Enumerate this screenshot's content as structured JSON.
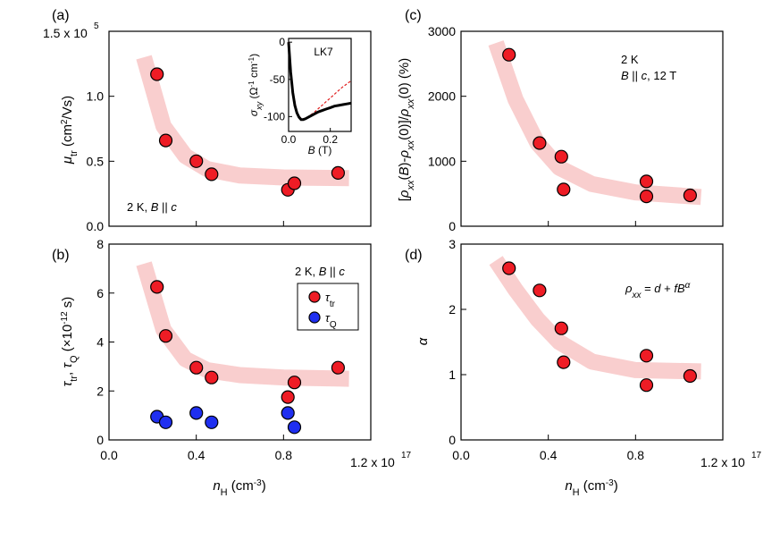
{
  "colors": {
    "tr": "#ee1c25",
    "q": "#1f2ff0",
    "band": "#f4a6a6",
    "inset_dashed": "#e02020"
  },
  "chart_data": [
    {
      "id": "a",
      "panel_label": "(a)",
      "type": "scatter",
      "ylabel": "μ_tr (cm²/Vs)",
      "ylabel_main": "μ",
      "ylabel_sub": "tr",
      "ylabel_rest": " (cm",
      "ylabel_sup": "2",
      "ylabel_end": "/Vs)",
      "ylim": [
        0,
        150000
      ],
      "yticks": [
        "0.0",
        "0.5",
        "1.0"
      ],
      "ytick_values": [
        0,
        50000,
        100000
      ],
      "ytop_label": "1.5 x 10",
      "ytop_exp": "5",
      "xlim": [
        0,
        1.2e+17
      ],
      "annotation": "2 K, B || c",
      "series": [
        {
          "marker": "red",
          "x": [
            2.2e+16,
            2.6e+16,
            4e+16,
            4.7e+16,
            8.2e+16,
            8.5e+16,
            1.05e+17
          ],
          "y": [
            117000,
            66000,
            50000,
            40000,
            28000,
            33000,
            41000
          ]
        }
      ],
      "band": {
        "x": [
          1.6e+16,
          2.5e+16,
          3.5e+16,
          4.5e+16,
          6e+16,
          8e+16,
          1.1e+17
        ],
        "y": [
          130000,
          77000,
          54000,
          44000,
          39000,
          37500,
          37000
        ]
      }
    },
    {
      "id": "b",
      "panel_label": "(b)",
      "type": "scatter",
      "ylabel": "τ_tr, τ_Q (×10^-12 s)",
      "ylim": [
        0,
        8
      ],
      "yticks": [
        "0",
        "2",
        "4",
        "6",
        "8"
      ],
      "ytick_values": [
        0,
        2,
        4,
        6,
        8
      ],
      "xlim": [
        0,
        1.2e+17
      ],
      "xticks": [
        "0.0",
        "0.4",
        "0.8"
      ],
      "xtick_values": [
        0,
        4e+16,
        8e+16
      ],
      "xtick_right": "1.2 x 10",
      "xtick_right_exp": "17",
      "xlabel_main": "n",
      "xlabel_sub": "H",
      "xlabel_rest": " (cm",
      "xlabel_sup": "-3",
      "xlabel_end": ")",
      "annotation": "2 K, B || c",
      "legend": [
        "τtr",
        "τQ"
      ],
      "series": [
        {
          "name": "τtr",
          "marker": "red",
          "x": [
            2.2e+16,
            2.6e+16,
            4e+16,
            4.7e+16,
            8.2e+16,
            8.5e+16,
            1.05e+17
          ],
          "y": [
            6.25,
            4.25,
            2.95,
            2.55,
            1.75,
            2.35,
            2.95
          ]
        },
        {
          "name": "τQ",
          "marker": "blue",
          "x": [
            2.2e+16,
            2.6e+16,
            4e+16,
            4.7e+16,
            8.2e+16,
            8.5e+16
          ],
          "y": [
            0.95,
            0.72,
            1.1,
            0.72,
            1.1,
            0.52
          ]
        }
      ],
      "band": {
        "x": [
          1.6e+16,
          2.5e+16,
          3.5e+16,
          4.5e+16,
          6e+16,
          8e+16,
          1.1e+17
        ],
        "y": [
          7.2,
          4.5,
          3.3,
          2.85,
          2.65,
          2.55,
          2.5
        ]
      }
    },
    {
      "id": "c",
      "panel_label": "(c)",
      "type": "scatter",
      "ylabel": "[ρxx(B)-ρxx(0)]/ρxx(0) (%)",
      "ylim": [
        0,
        3000
      ],
      "yticks": [
        "0",
        "1000",
        "2000",
        "3000"
      ],
      "ytick_values": [
        0,
        1000,
        2000,
        3000
      ],
      "xlim": [
        0,
        1.2e+17
      ],
      "annotation_line1": "2 K",
      "annotation_line2": "B || c, 12 T",
      "series": [
        {
          "marker": "red",
          "x": [
            2.2e+16,
            3.6e+16,
            4.6e+16,
            4.7e+16,
            8.5e+16,
            8.5e+16,
            1.05e+17
          ],
          "y": [
            2640,
            1280,
            1070,
            565,
            690,
            460,
            475
          ]
        }
      ],
      "band": {
        "x": [
          1.6e+16,
          2.5e+16,
          3.5e+16,
          4.5e+16,
          6e+16,
          8e+16,
          1.1e+17
        ],
        "y": [
          2820,
          1950,
          1280,
          900,
          650,
          520,
          450
        ]
      }
    },
    {
      "id": "d",
      "panel_label": "(d)",
      "type": "scatter",
      "ylabel": "α",
      "ylim": [
        0,
        3
      ],
      "yticks": [
        "0",
        "1",
        "2",
        "3"
      ],
      "ytick_values": [
        0,
        1,
        2,
        3
      ],
      "xlim": [
        0,
        1.2e+17
      ],
      "xticks": [
        "0.0",
        "0.4",
        "0.8"
      ],
      "xtick_values": [
        0,
        4e+16,
        8e+16
      ],
      "xtick_right": "1.2 x 10",
      "xtick_right_exp": "17",
      "xlabel_main": "n",
      "xlabel_sub": "H",
      "xlabel_rest": " (cm",
      "xlabel_sup": "-3",
      "xlabel_end": ")",
      "annotation": "ρxx = d + fB^α",
      "series": [
        {
          "marker": "red",
          "x": [
            2.2e+16,
            3.6e+16,
            4.6e+16,
            4.7e+16,
            8.5e+16,
            8.5e+16,
            1.05e+17
          ],
          "y": [
            2.63,
            2.29,
            1.71,
            1.19,
            1.29,
            0.84,
            0.98
          ]
        }
      ],
      "band": {
        "x": [
          1.6e+16,
          2.5e+16,
          3.5e+16,
          4.5e+16,
          6e+16,
          8e+16,
          1.1e+17
        ],
        "y": [
          2.75,
          2.3,
          1.85,
          1.5,
          1.2,
          1.07,
          1.05
        ]
      }
    }
  ],
  "inset": {
    "label": "LK7",
    "ylabel": "σxy (Ω⁻¹ cm⁻¹)",
    "xlabel": "B (T)",
    "yticks": [
      "-100",
      "-50",
      "0"
    ],
    "ytick_values": [
      -100,
      -50,
      0
    ],
    "xticks": [
      "0.0",
      "0.2"
    ],
    "xtick_values": [
      0,
      0.2
    ],
    "xlim": [
      0,
      0.3
    ],
    "ylim": [
      -120,
      5
    ],
    "data_x": [
      0.0,
      0.01,
      0.02,
      0.03,
      0.04,
      0.05,
      0.06,
      0.07,
      0.08,
      0.1,
      0.12,
      0.14,
      0.16,
      0.18,
      0.2,
      0.22,
      0.24,
      0.26,
      0.28,
      0.3
    ],
    "data_y": [
      0,
      -40,
      -68,
      -85,
      -95,
      -101,
      -104,
      -104,
      -103,
      -100,
      -97,
      -94,
      -92,
      -90,
      -88,
      -86,
      -85,
      -84,
      -83,
      -82
    ],
    "fit_x": [
      0.0,
      0.02,
      0.04,
      0.06,
      0.08,
      0.1,
      0.12,
      0.14,
      0.16,
      0.18,
      0.2,
      0.22,
      0.24,
      0.26,
      0.28,
      0.3
    ],
    "fit_y": [
      0,
      -65,
      -94,
      -103,
      -103,
      -99,
      -95,
      -90,
      -85,
      -80,
      -75,
      -70,
      -65,
      -60,
      -56,
      -52
    ]
  }
}
